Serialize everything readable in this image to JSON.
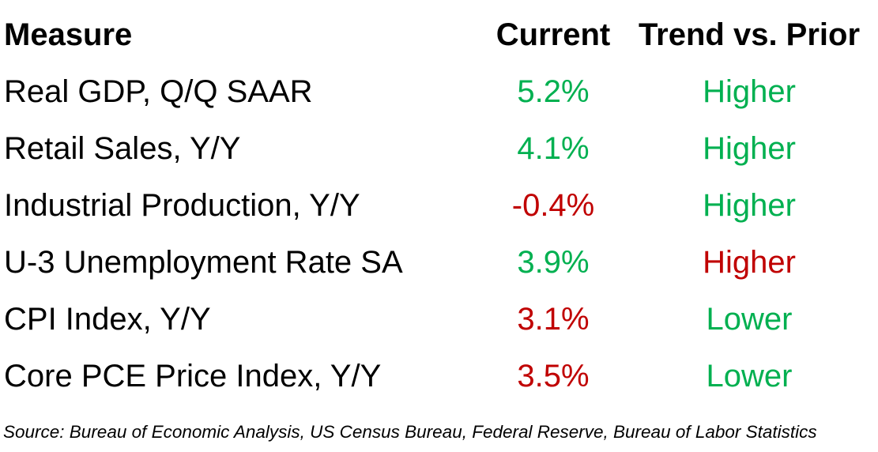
{
  "colors": {
    "green": "#00b050",
    "red": "#c00000",
    "black": "#000000"
  },
  "table": {
    "headers": [
      "Measure",
      "Current",
      "Trend vs. Prior"
    ],
    "rows": [
      {
        "measure": "Real GDP, Q/Q SAAR",
        "current": "5.2%",
        "current_color": "green",
        "trend": "Higher",
        "trend_color": "green"
      },
      {
        "measure": "Retail Sales, Y/Y",
        "current": "4.1%",
        "current_color": "green",
        "trend": "Higher",
        "trend_color": "green"
      },
      {
        "measure": "Industrial Production, Y/Y",
        "current": "-0.4%",
        "current_color": "red",
        "trend": "Higher",
        "trend_color": "green"
      },
      {
        "measure": "U-3 Unemployment Rate SA",
        "current": "3.9%",
        "current_color": "green",
        "trend": "Higher",
        "trend_color": "red"
      },
      {
        "measure": "CPI Index, Y/Y",
        "current": "3.1%",
        "current_color": "red",
        "trend": "Lower",
        "trend_color": "green"
      },
      {
        "measure": "Core PCE Price Index, Y/Y",
        "current": "3.5%",
        "current_color": "red",
        "trend": "Lower",
        "trend_color": "green"
      }
    ]
  },
  "source_note": "Source: Bureau of Economic Analysis, US Census Bureau, Federal Reserve, Bureau of Labor Statistics",
  "chart_data": {
    "type": "table",
    "title": "",
    "columns": [
      "Measure",
      "Current",
      "Trend vs. Prior"
    ],
    "rows": [
      [
        "Real GDP, Q/Q SAAR",
        "5.2%",
        "Higher"
      ],
      [
        "Retail Sales, Y/Y",
        "4.1%",
        "Higher"
      ],
      [
        "Industrial Production, Y/Y",
        "-0.4%",
        "Higher"
      ],
      [
        "U-3 Unemployment Rate SA",
        "3.9%",
        "Higher"
      ],
      [
        "CPI Index, Y/Y",
        "3.1%",
        "Lower"
      ],
      [
        "Core PCE Price Index, Y/Y",
        "3.5%",
        "Lower"
      ]
    ],
    "cell_colors": {
      "current": [
        "green",
        "green",
        "red",
        "green",
        "red",
        "red"
      ],
      "trend": [
        "green",
        "green",
        "green",
        "red",
        "green",
        "green"
      ]
    },
    "legend_semantics": "green = favorable reading, red = unfavorable reading",
    "source_note": "Source: Bureau of Economic Analysis, US Census Bureau, Federal Reserve, Bureau of Labor Statistics"
  }
}
